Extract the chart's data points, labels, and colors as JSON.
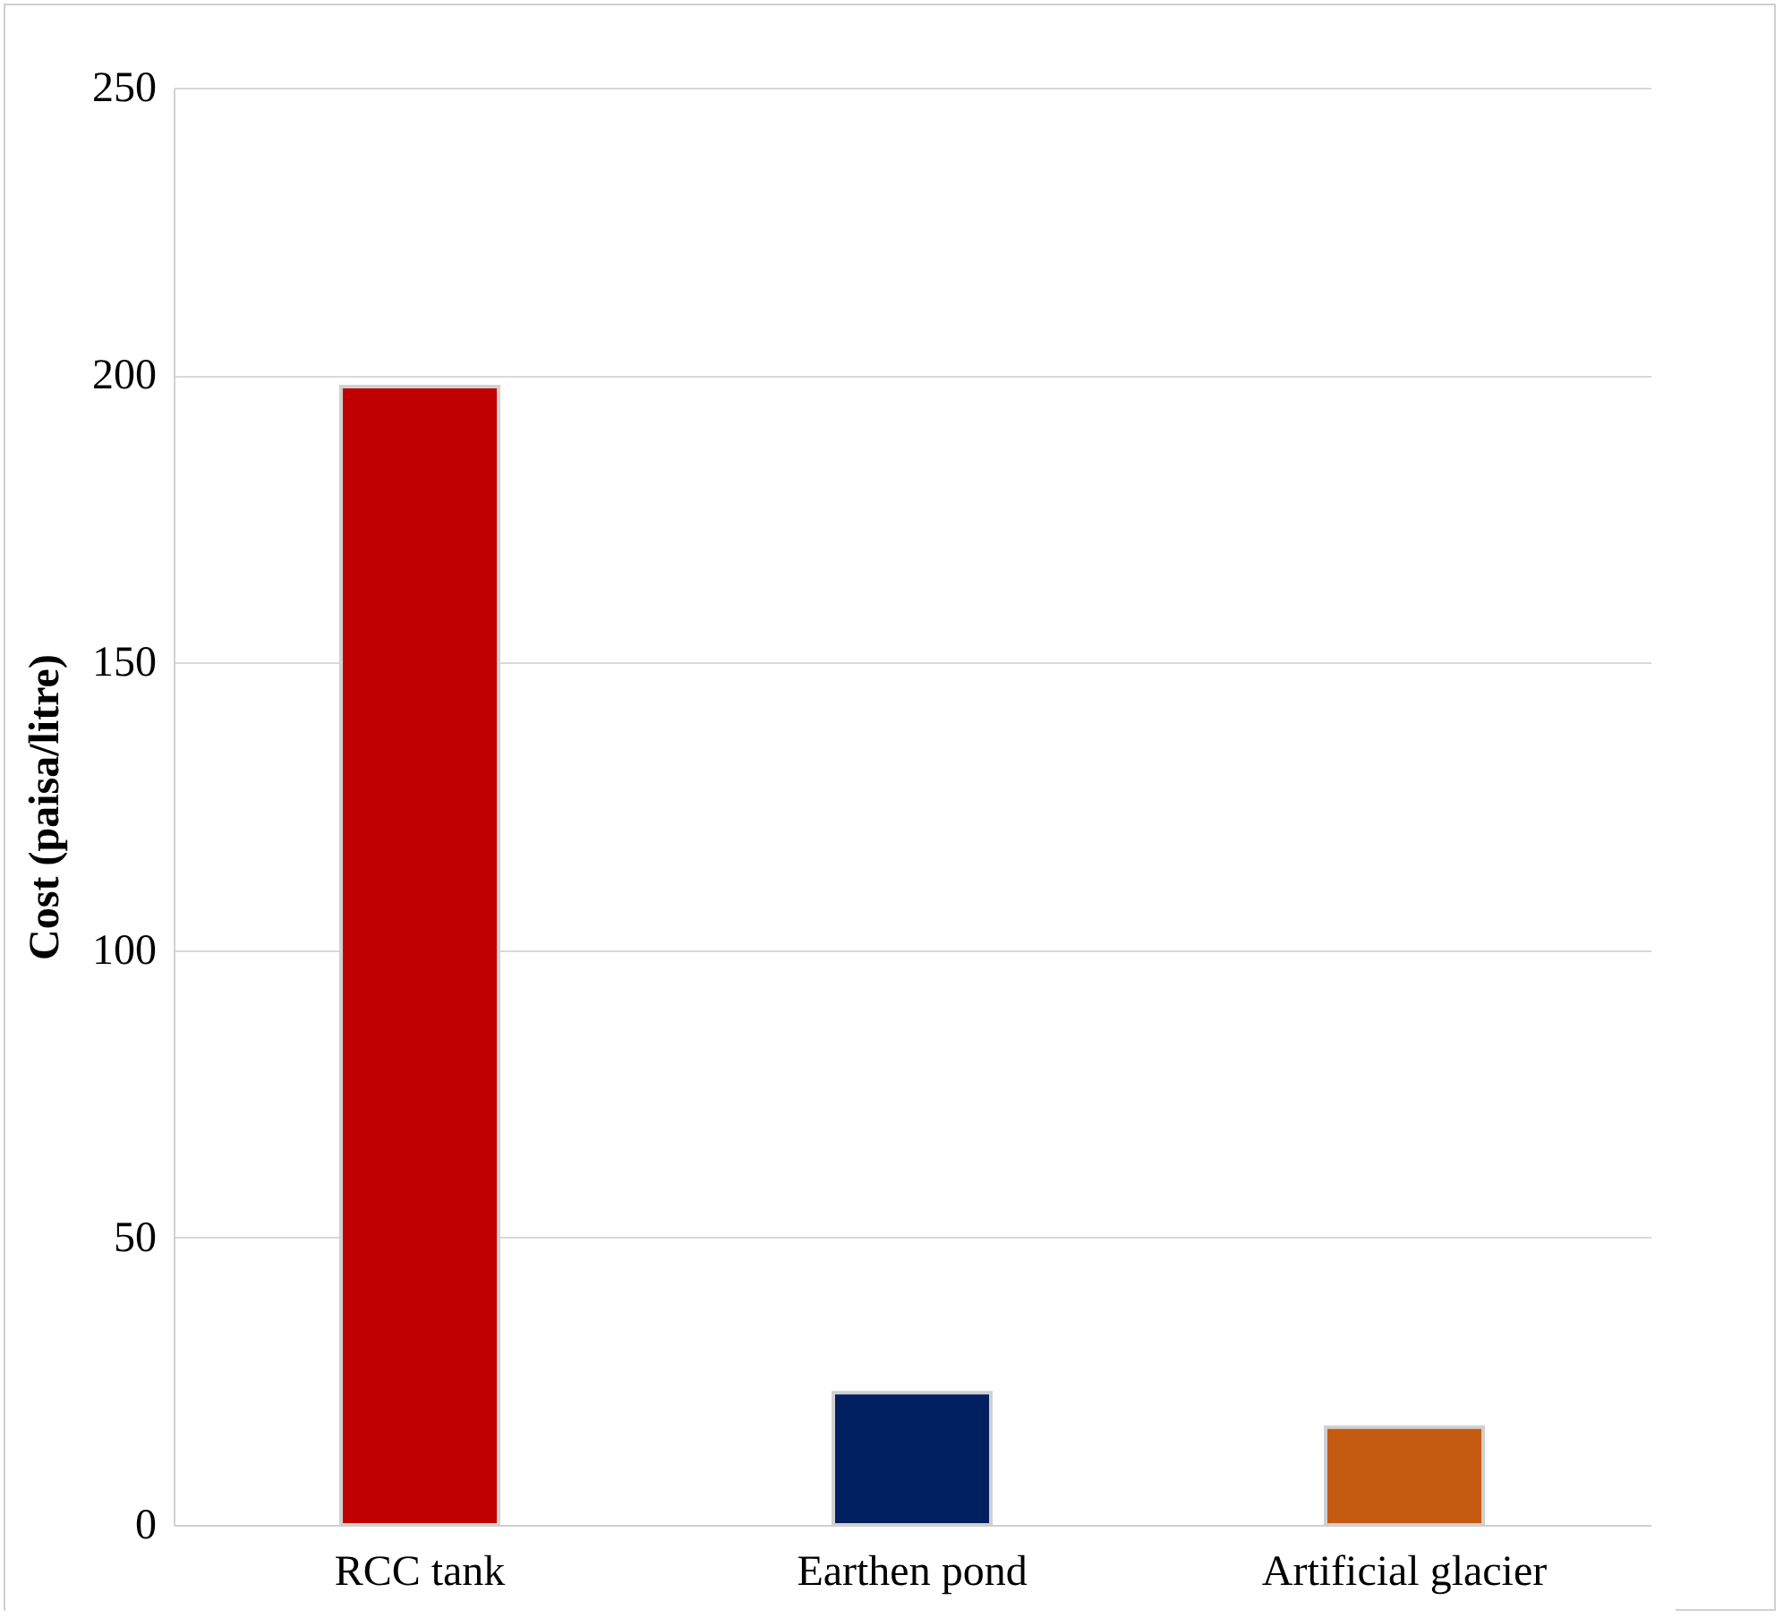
{
  "chart_data": {
    "type": "bar",
    "ylabel": "Cost (paisa/litre)",
    "categories": [
      "RCC tank",
      "Earthen pond",
      "Artificial glacier"
    ],
    "values": [
      198,
      23,
      17
    ],
    "colors": [
      "#c00000",
      "#002060",
      "#c55a11"
    ],
    "ylim": [
      0,
      250
    ],
    "yticks": [
      0,
      50,
      100,
      150,
      200,
      250
    ],
    "grid": "y"
  }
}
